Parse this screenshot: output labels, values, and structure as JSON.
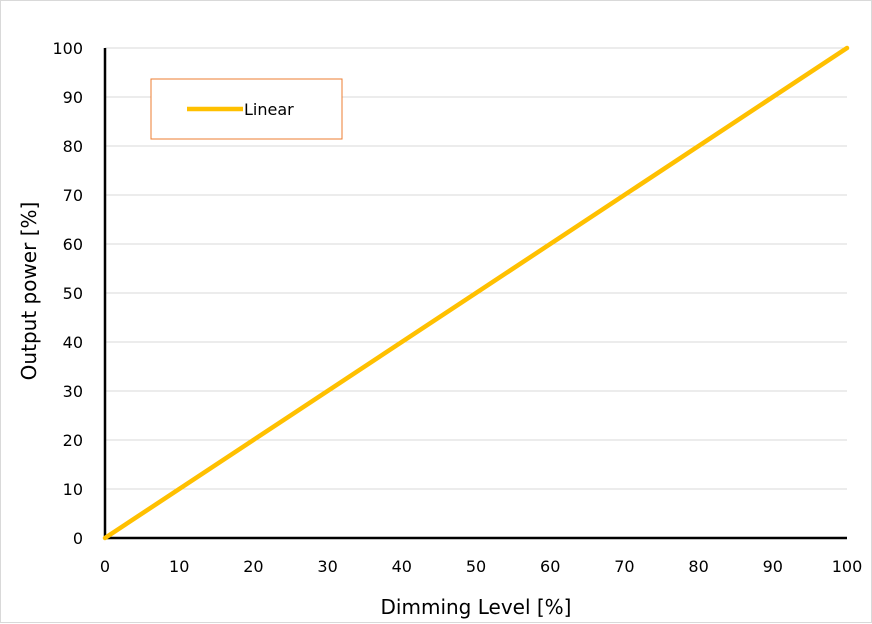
{
  "chart_data": {
    "type": "line",
    "xlabel": "Dimming Level [%]",
    "ylabel": "Output power [%]",
    "xlim": [
      0,
      100
    ],
    "ylim": [
      0,
      100
    ],
    "x_ticks": [
      0,
      10,
      20,
      30,
      40,
      50,
      60,
      70,
      80,
      90,
      100
    ],
    "y_ticks": [
      0,
      10,
      20,
      30,
      40,
      50,
      60,
      70,
      80,
      90,
      100
    ],
    "grid": "horizontal",
    "legend_position": "top-left",
    "series": [
      {
        "name": "Linear",
        "color": "#FFC000",
        "x": [
          0,
          25,
          50,
          85,
          100
        ],
        "y": [
          0,
          25,
          50,
          85,
          100
        ]
      }
    ]
  },
  "colors": {
    "gridline": "#d9d9d9",
    "axis": "#000000",
    "legend_border": "#ED7D31",
    "frame_border": "#d9d9d9"
  }
}
